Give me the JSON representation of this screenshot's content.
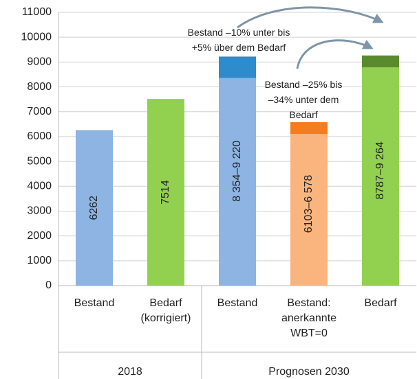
{
  "chart_data": {
    "type": "range-bar",
    "categories": [
      "Bestand",
      "Bedarf\n(korrigiert)",
      "Bestand",
      "Bestand:\nanerkannte\nWBT=0",
      "Bedarf"
    ],
    "groups": [
      {
        "label": "2018",
        "span": [
          0,
          1
        ]
      },
      {
        "label": "Prognosen 2030",
        "span": [
          2,
          4
        ]
      }
    ],
    "low": [
      6262,
      7514,
      8354,
      6103,
      8787
    ],
    "high": [
      null,
      null,
      9220,
      6578,
      9264
    ],
    "value_labels": [
      "6262",
      "7514",
      "8 354–9 220",
      "6103–6 578",
      "8787–9 264"
    ],
    "colors": [
      "#8db4e2",
      "#92d050",
      "#8db4e2",
      "#fab47d",
      "#92d050"
    ],
    "top_colors": [
      null,
      null,
      "#2e8bcc",
      "#f57c1f",
      "#5b8a2e"
    ],
    "annotations": [
      "Bestand –10% unter bis\n+5% über dem Bedarf",
      "Bestand –25% bis\n–34% unter dem\nBedarf"
    ],
    "ylim": [
      0,
      11000
    ],
    "yticks": [
      0,
      1000,
      2000,
      3000,
      4000,
      5000,
      6000,
      7000,
      8000,
      9000,
      10000,
      11000
    ],
    "grid": true
  }
}
